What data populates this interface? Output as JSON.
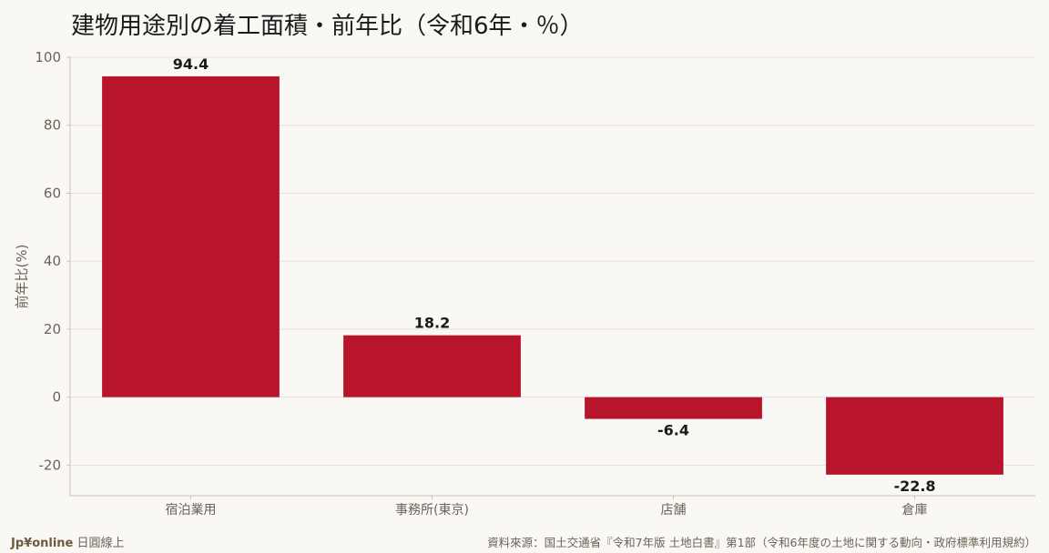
{
  "chart_data": {
    "type": "bar",
    "title": "建物用途別の着工面積・前年比（令和6年・％）",
    "ylabel": "前年比(%)",
    "xlabel": "",
    "categories": [
      "宿泊業用",
      "事務所(東京)",
      "店舗",
      "倉庫"
    ],
    "values": [
      94.4,
      18.2,
      -6.4,
      -22.8
    ],
    "value_labels": [
      "94.4",
      "18.2",
      "-6.4",
      "-22.8"
    ],
    "ylim": [
      -29,
      100
    ],
    "yticks": [
      100,
      80,
      60,
      40,
      20,
      0,
      -20
    ],
    "ytick_labels": [
      "100",
      "80",
      "60",
      "40",
      "20",
      "0",
      "-20"
    ],
    "grid": true,
    "bar_color": "#b8142c"
  },
  "footer": {
    "brand": "Jp¥online",
    "brand_suffix": "日圓線上",
    "source": "資料來源：国土交通省『令和7年版 土地白書』第1部（令和6年度の土地に関する動向・政府標準利用規約）"
  }
}
